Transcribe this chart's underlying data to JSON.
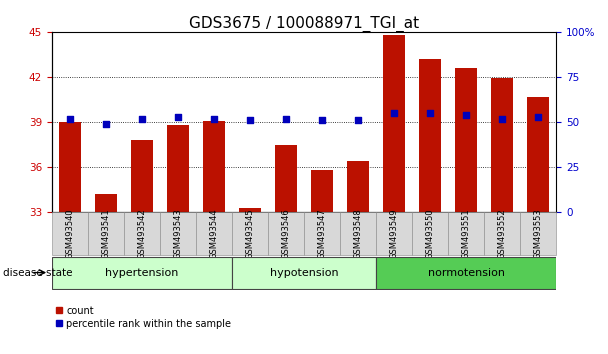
{
  "title": "GDS3675 / 100088971_TGI_at",
  "samples": [
    "GSM493540",
    "GSM493541",
    "GSM493542",
    "GSM493543",
    "GSM493544",
    "GSM493545",
    "GSM493546",
    "GSM493547",
    "GSM493548",
    "GSM493549",
    "GSM493550",
    "GSM493551",
    "GSM493552",
    "GSM493553"
  ],
  "count_values": [
    39.0,
    34.2,
    37.8,
    38.8,
    39.05,
    33.3,
    37.5,
    35.8,
    36.4,
    44.8,
    43.2,
    42.6,
    41.9,
    40.7
  ],
  "percentile_values": [
    52,
    49,
    52,
    53,
    52,
    51,
    52,
    51,
    51,
    55,
    55,
    54,
    52,
    53
  ],
  "ylim_left": [
    33,
    45
  ],
  "ylim_right": [
    0,
    100
  ],
  "yticks_left": [
    33,
    36,
    39,
    42,
    45
  ],
  "yticks_right": [
    0,
    25,
    50,
    75,
    100
  ],
  "bar_color": "#bb1100",
  "dot_color": "#0000bb",
  "groups": [
    {
      "label": "hypertension",
      "start": 0,
      "end": 5
    },
    {
      "label": "hypotension",
      "start": 5,
      "end": 9
    },
    {
      "label": "normotension",
      "start": 9,
      "end": 14
    }
  ],
  "group_colors": [
    "#ccffcc",
    "#ccffcc",
    "#55cc55"
  ],
  "ylabel_left_color": "#cc0000",
  "ylabel_right_color": "#0000cc",
  "title_fontsize": 11,
  "tick_fontsize": 7.5,
  "sample_fontsize": 6,
  "group_fontsize": 8,
  "legend_fontsize": 7,
  "disease_label": "disease state",
  "legend_count": "count",
  "legend_percentile": "percentile rank within the sample",
  "grid_yticks": [
    36,
    39,
    42
  ]
}
